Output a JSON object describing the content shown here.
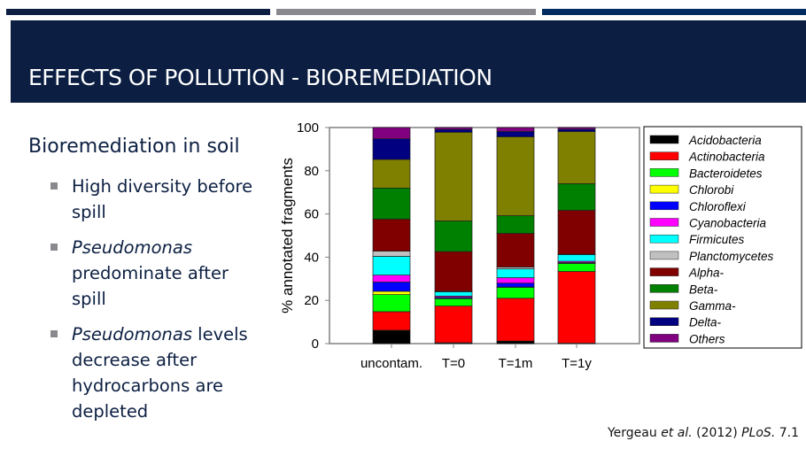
{
  "slide": {
    "title": "EFFECTS OF POLLUTION - BIOREMEDIATION",
    "subtitle": "Bioremediation in soil",
    "bullets": [
      {
        "italic": "",
        "text": "High diversity before spill"
      },
      {
        "italic": "Pseudomonas",
        "text": " predominate after spill"
      },
      {
        "italic": "Pseudomonas",
        "text": " levels decrease after hydrocarbons are depleted"
      }
    ],
    "citation": {
      "author": "Yergeau ",
      "etal": "et al.",
      "year": " (2012) ",
      "journal": "PLoS.",
      "vol": " 7.1"
    },
    "colors": {
      "header": "#0c1f42",
      "strip_gray": "#8a8a8e",
      "strip_blue": "#002c5f"
    }
  },
  "chart_data": {
    "type": "bar",
    "stacked": true,
    "ylabel": "% annotated fragments",
    "xlabel": "",
    "ylim": [
      0,
      100
    ],
    "yticks": [
      0,
      20,
      40,
      60,
      80,
      100
    ],
    "categories": [
      "uncontam.",
      "T=0",
      "T=1m",
      "T=1y"
    ],
    "legend_position": "right",
    "series": [
      {
        "name": "Acidobacteria",
        "color": "#000000",
        "values": [
          6.2,
          0.4,
          1.2,
          0.2
        ]
      },
      {
        "name": "Actinobacteria",
        "color": "#ff0000",
        "values": [
          8.6,
          17.0,
          19.8,
          33.2
        ]
      },
      {
        "name": "Bacteroidetes",
        "color": "#00ff00",
        "values": [
          7.9,
          3.4,
          5.0,
          3.7
        ]
      },
      {
        "name": "Chlorobi",
        "color": "#ffff00",
        "values": [
          1.5,
          0.1,
          0.2,
          0.1
        ]
      },
      {
        "name": "Chloroflexi",
        "color": "#0000ff",
        "values": [
          4.3,
          0.5,
          1.8,
          0.3
        ]
      },
      {
        "name": "Cyanobacteria",
        "color": "#ff00ff",
        "values": [
          3.2,
          0.6,
          2.5,
          0.6
        ]
      },
      {
        "name": "Firmicutes",
        "color": "#00ffff",
        "values": [
          8.7,
          2.0,
          4.1,
          3.1
        ]
      },
      {
        "name": "Planctomycetes",
        "color": "#c0c0c0",
        "values": [
          2.4,
          0.3,
          0.8,
          0.2
        ]
      },
      {
        "name": "Alpha-",
        "color": "#800000",
        "values": [
          14.8,
          18.3,
          15.6,
          20.3
        ]
      },
      {
        "name": "Beta-",
        "color": "#008000",
        "values": [
          14.4,
          14.2,
          8.2,
          12.3
        ]
      },
      {
        "name": "Gamma-",
        "color": "#808000",
        "values": [
          13.2,
          41.0,
          36.5,
          24.1
        ]
      },
      {
        "name": "Delta-",
        "color": "#000080",
        "values": [
          9.6,
          1.3,
          2.5,
          1.1
        ]
      },
      {
        "name": "Others",
        "color": "#800080",
        "values": [
          5.2,
          0.9,
          1.8,
          0.8
        ]
      }
    ]
  }
}
